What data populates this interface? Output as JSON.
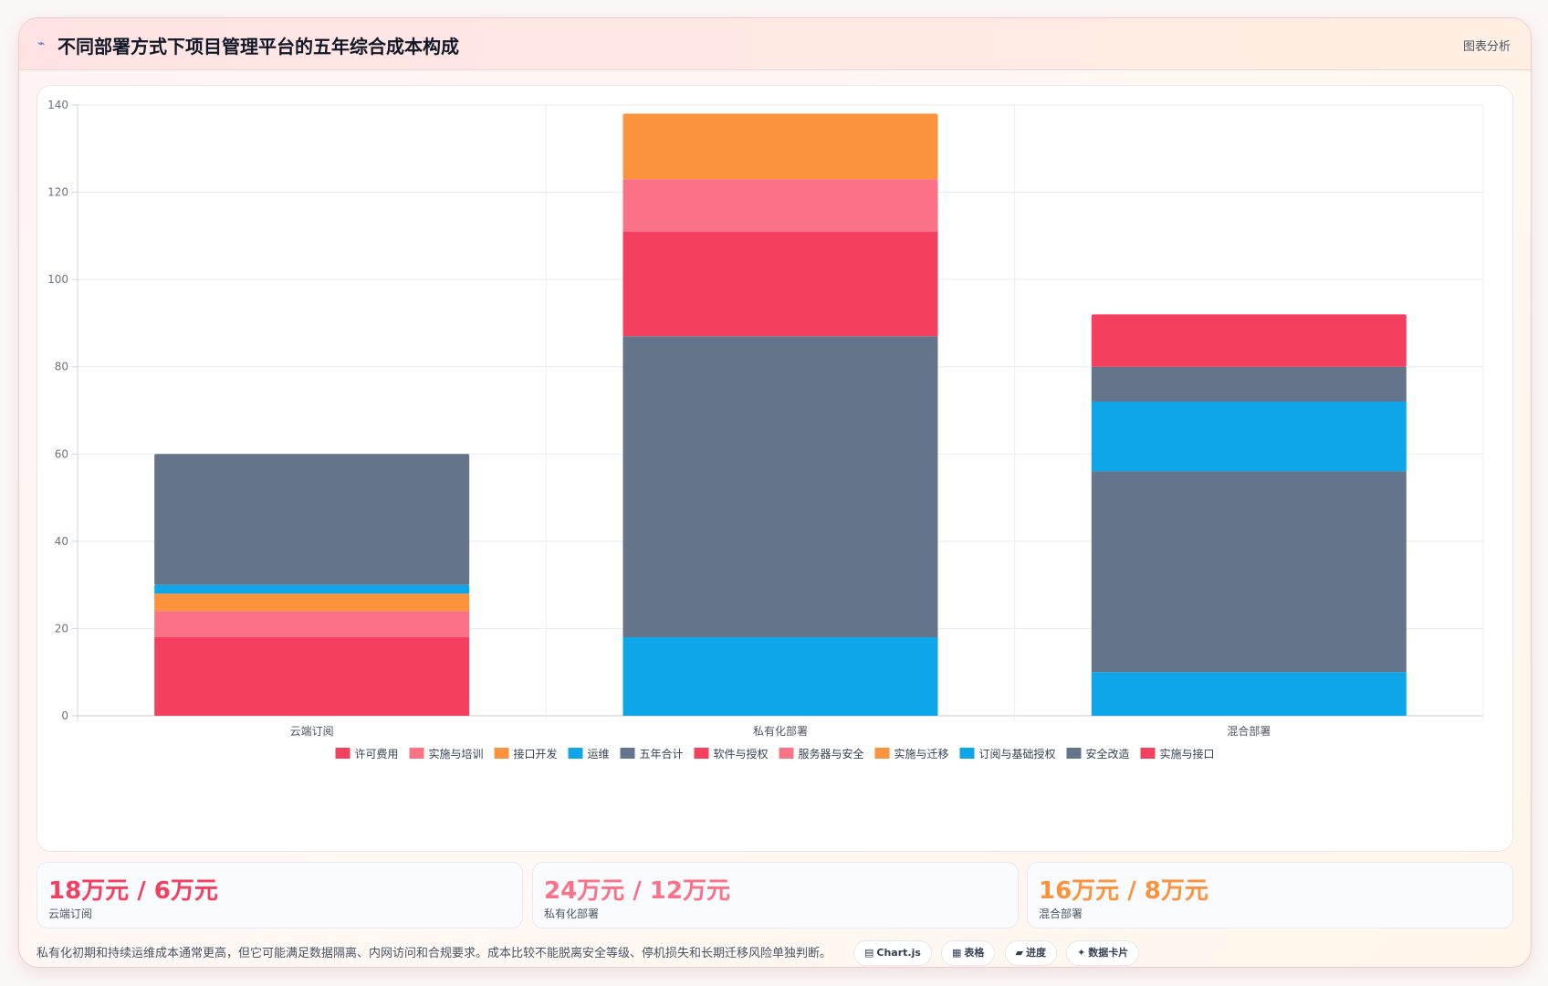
{
  "header": {
    "icon": "chart-line-icon",
    "title": "不同部署方式下项目管理平台的五年综合成本构成",
    "link": "图表分析"
  },
  "chart_data": {
    "type": "bar",
    "stacked": true,
    "title": "",
    "xlabel": "",
    "ylabel": "",
    "ylim": [
      0,
      140
    ],
    "yticks": [
      0,
      20,
      40,
      60,
      80,
      100,
      120,
      140
    ],
    "grid": true,
    "legend_position": "bottom",
    "categories": [
      "云端订阅",
      "私有化部署",
      "混合部署"
    ],
    "series": [
      {
        "name": "许可费用",
        "color": "#f43f5e",
        "values": [
          18,
          null,
          null
        ]
      },
      {
        "name": "实施与培训",
        "color": "#fb7185",
        "values": [
          6,
          null,
          null
        ]
      },
      {
        "name": "接口开发",
        "color": "#fb923c",
        "values": [
          4,
          null,
          null
        ]
      },
      {
        "name": "运维",
        "color": "#0ea5e9",
        "values": [
          2,
          null,
          null
        ]
      },
      {
        "name": "五年合计",
        "color": "#64748b",
        "values": [
          30,
          null,
          null
        ]
      },
      {
        "name": "软件与授权",
        "color": "#f43f5e",
        "values": [
          null,
          24,
          null
        ]
      },
      {
        "name": "服务器与安全",
        "color": "#fb7185",
        "values": [
          null,
          12,
          null
        ]
      },
      {
        "name": "实施与迁移",
        "color": "#fb923c",
        "values": [
          null,
          15,
          null
        ]
      },
      {
        "name": "订阅与基础授权",
        "color": "#0ea5e9",
        "values": [
          null,
          18,
          10
        ]
      },
      {
        "name": "安全改造",
        "color": "#64748b",
        "values": [
          null,
          69,
          46
        ]
      },
      {
        "name": "实施与接口",
        "color": "#f43f5e",
        "values": [
          null,
          null,
          12
        ]
      }
    ],
    "stack_order": [
      [
        0,
        1,
        2,
        3,
        4
      ],
      [
        8,
        9,
        5,
        6,
        7
      ],
      [
        8,
        9,
        3,
        4,
        10
      ]
    ],
    "extra_segments": [
      {
        "category": 2,
        "after_series": 8,
        "series_color_from": 3,
        "value": 16
      },
      {
        "category": 2,
        "after_series": 9,
        "series_color_from": 4,
        "value": 8
      }
    ]
  },
  "stats": [
    {
      "value": "18万元 / 6万元",
      "label": "云端订阅",
      "color": "#f43f5e"
    },
    {
      "value": "24万元 / 12万元",
      "label": "私有化部署",
      "color": "#fb7185"
    },
    {
      "value": "16万元 / 8万元",
      "label": "混合部署",
      "color": "#fb923c"
    }
  ],
  "note": "私有化初期和持续运维成本通常更高，但它可能满足数据隔离、内网访问和合规要求。成本比较不能脱离安全等级、停机损失和长期迁移风险单独判断。",
  "chips": [
    {
      "icon": "▤",
      "label": "Chart.js"
    },
    {
      "icon": "▦",
      "label": "表格"
    },
    {
      "icon": "▰",
      "label": "进度"
    },
    {
      "icon": "✦",
      "label": "数据卡片"
    }
  ]
}
